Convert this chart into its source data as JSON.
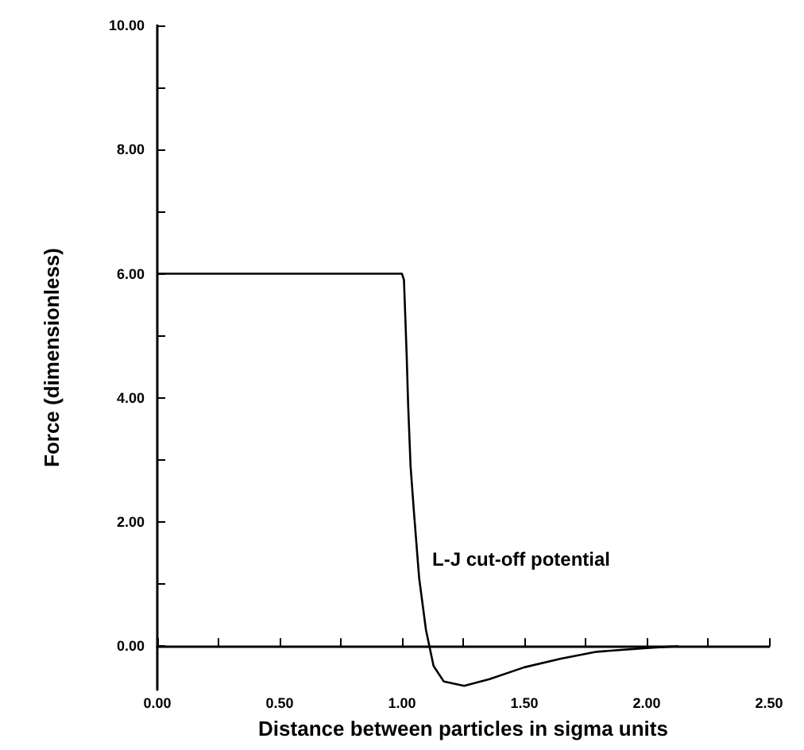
{
  "chart_data": {
    "type": "line",
    "xlabel": "Distance between particles in sigma units",
    "ylabel": "Force (dimensionless)",
    "x": [
      0,
      1.0,
      1.008,
      1.019,
      1.025,
      1.035,
      1.05,
      1.07,
      1.098,
      1.129,
      1.171,
      1.254,
      1.358,
      1.5,
      1.65,
      1.796,
      2.0,
      2.13
    ],
    "series": [
      {
        "color": "#000000",
        "values": [
          6.0,
          6.0,
          5.9,
          4.7,
          3.9,
          2.9,
          2.1,
          1.1,
          0.26,
          -0.32,
          -0.57,
          -0.64,
          -0.53,
          -0.34,
          -0.2,
          -0.09,
          -0.03,
          0.0
        ]
      }
    ],
    "xlim": [
      0,
      2.5
    ],
    "xticks": [
      {
        "value": 0,
        "label": "0.00"
      },
      {
        "value": 0.25,
        "label": null
      },
      {
        "value": 0.5,
        "label": "0.50"
      },
      {
        "value": 0.75,
        "label": null
      },
      {
        "value": 1.0,
        "label": "1.00"
      },
      {
        "value": 1.25,
        "label": null
      },
      {
        "value": 1.5,
        "label": "1.50"
      },
      {
        "value": 1.75,
        "label": null
      },
      {
        "value": 2.0,
        "label": "2.00"
      },
      {
        "value": 2.25,
        "label": null
      },
      {
        "value": 2.5,
        "label": "2.50"
      }
    ],
    "ylim": [
      -0.7,
      10
    ],
    "yticks": [
      {
        "value": 0,
        "label": "0.00"
      },
      {
        "value": 1,
        "label": null
      },
      {
        "value": 2,
        "label": "2.00"
      },
      {
        "value": 3,
        "label": null
      },
      {
        "value": 4,
        "label": "4.00"
      },
      {
        "value": 5,
        "label": null
      },
      {
        "value": 6,
        "label": "6.00"
      },
      {
        "value": 7,
        "label": null
      },
      {
        "value": 8,
        "label": "8.00"
      },
      {
        "value": 9,
        "label": null
      },
      {
        "value": 10,
        "label": "10.00"
      }
    ],
    "annotations": [
      "L-J cut-off potential"
    ],
    "marker": "none",
    "line_style": "solid"
  }
}
